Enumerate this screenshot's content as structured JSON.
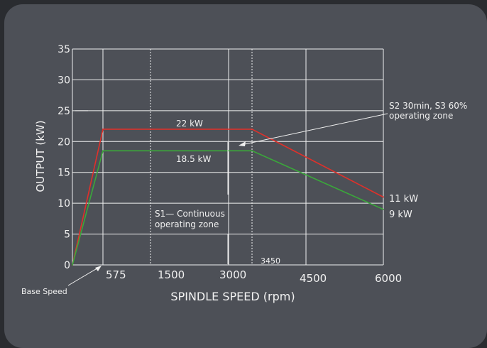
{
  "chart_data": {
    "type": "line",
    "xlabel": "SPINDLE SPEED (rpm)",
    "ylabel": "OUTPUT (kW)",
    "ylim": [
      0,
      35
    ],
    "y_ticks": [
      "0",
      "5",
      "10",
      "15",
      "20",
      "25",
      "30",
      "35"
    ],
    "x_tick_labels": [
      "575",
      "1500",
      "3000",
      "3450",
      "4500",
      "6000"
    ],
    "grid": true,
    "series": [
      {
        "color": "#e0302a",
        "points": [
          {
            "x": 0,
            "y": 0
          },
          {
            "x": 575,
            "y": 22
          },
          {
            "x": 3450,
            "y": 22
          },
          {
            "x": 6000,
            "y": 11
          }
        ]
      },
      {
        "color": "#3aa83a",
        "points": [
          {
            "x": 0,
            "y": 0
          },
          {
            "x": 575,
            "y": 18.5
          },
          {
            "x": 3450,
            "y": 18.5
          },
          {
            "x": 6000,
            "y": 9
          }
        ]
      }
    ],
    "annotations": {
      "label_22kw": "22  kW",
      "label_18_5kw": "18.5  kW",
      "label_11kw": "11  kW",
      "label_9kw": "9  kW",
      "s2_line1": "S2  30min,  S3  60%",
      "s2_line2": "operating  zone",
      "s1_line1": "S1—  Continuous",
      "s1_line2": "operating  zone",
      "base_speed": "Base  Speed"
    }
  }
}
